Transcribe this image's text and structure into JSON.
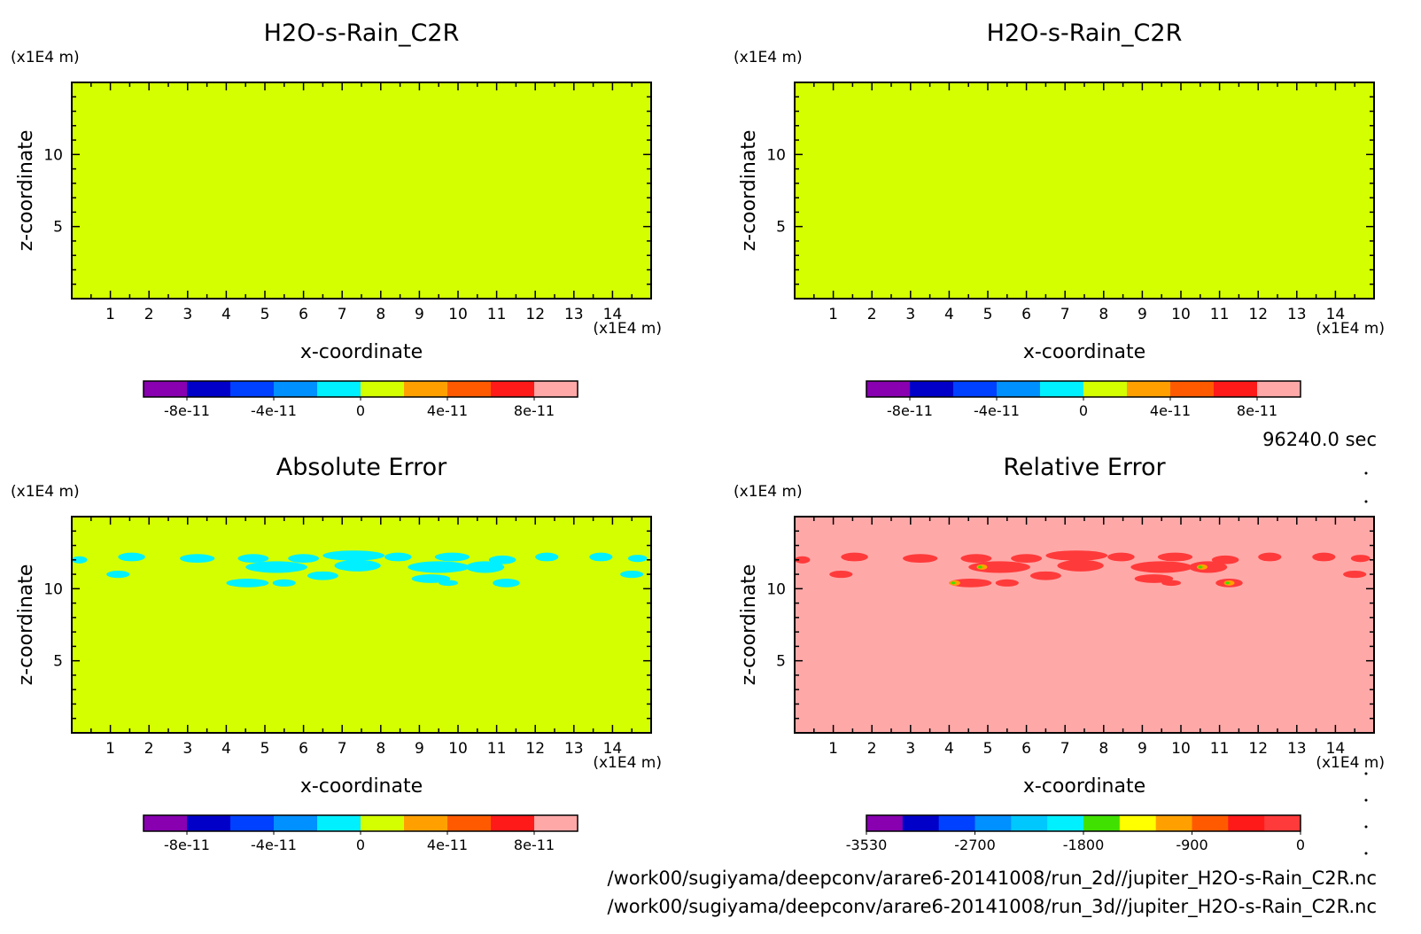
{
  "time_label": "96240.0 sec",
  "footer": {
    "path_2d": "/work00/sugiyama/deepconv/arare6-20141008/run_2d//jupiter_H2O-s-Rain_C2R.nc",
    "path_3d": "/work00/sugiyama/deepconv/arare6-20141008/run_3d//jupiter_H2O-s-Rain_C2R.nc"
  },
  "colors": {
    "field_zero": "#d4ff00",
    "cyan": "#00f0ff",
    "relative_bg": "#ffa8a8",
    "relative_red": "#ff3a3a",
    "frame": "#000000"
  },
  "chart_data": [
    {
      "type": "heatmap",
      "title": "H2O-s-Rain_C2R",
      "xlabel": "x-coordinate",
      "ylabel": "z-coordinate",
      "x_unit": "(x1E4 m)",
      "y_unit": "(x1E4 m)",
      "xlim": [
        0,
        15
      ],
      "ylim": [
        0,
        15
      ],
      "xticks": [
        1,
        2,
        3,
        4,
        5,
        6,
        7,
        8,
        9,
        10,
        11,
        12,
        13,
        14
      ],
      "yticks": [
        5,
        10
      ],
      "field": "uniform 0",
      "colorbar": {
        "colors": [
          "#8800b0",
          "#0000c8",
          "#0040ff",
          "#0090ff",
          "#00f0ff",
          "#d4ff00",
          "#ffa000",
          "#ff5a00",
          "#ff1a1a",
          "#ffa8a8"
        ],
        "tick_labels": [
          "-8e-11",
          "-4e-11",
          "0",
          "4e-11",
          "8e-11"
        ]
      }
    },
    {
      "type": "heatmap",
      "title": "H2O-s-Rain_C2R",
      "xlabel": "x-coordinate",
      "ylabel": "z-coordinate",
      "x_unit": "(x1E4 m)",
      "y_unit": "(x1E4 m)",
      "xlim": [
        0,
        15
      ],
      "ylim": [
        0,
        15
      ],
      "xticks": [
        1,
        2,
        3,
        4,
        5,
        6,
        7,
        8,
        9,
        10,
        11,
        12,
        13,
        14
      ],
      "yticks": [
        5,
        10
      ],
      "field": "uniform 0",
      "colorbar": {
        "colors": [
          "#8800b0",
          "#0000c8",
          "#0040ff",
          "#0090ff",
          "#00f0ff",
          "#d4ff00",
          "#ffa000",
          "#ff5a00",
          "#ff1a1a",
          "#ffa8a8"
        ],
        "tick_labels": [
          "-8e-11",
          "-4e-11",
          "0",
          "4e-11",
          "8e-11"
        ]
      }
    },
    {
      "type": "heatmap",
      "title": "Absolute Error",
      "xlabel": "x-coordinate",
      "ylabel": "z-coordinate",
      "x_unit": "(x1E4 m)",
      "y_unit": "(x1E4 m)",
      "xlim": [
        0,
        15
      ],
      "ylim": [
        0,
        15
      ],
      "xticks": [
        1,
        2,
        3,
        4,
        5,
        6,
        7,
        8,
        9,
        10,
        11,
        12,
        13,
        14
      ],
      "yticks": [
        5,
        10
      ],
      "field": "background 0, small negative patches between z=10 and z=12.5",
      "colorbar": {
        "colors": [
          "#8800b0",
          "#0000c8",
          "#0040ff",
          "#0090ff",
          "#00f0ff",
          "#d4ff00",
          "#ffa000",
          "#ff5a00",
          "#ff1a1a",
          "#ffa8a8"
        ],
        "tick_labels": [
          "-8e-11",
          "-4e-11",
          "0",
          "4e-11",
          "8e-11"
        ]
      }
    },
    {
      "type": "heatmap",
      "title": "Relative Error",
      "xlabel": "x-coordinate",
      "ylabel": "z-coordinate",
      "x_unit": "(x1E4 m)",
      "y_unit": "(x1E4 m)",
      "xlim": [
        0,
        15
      ],
      "ylim": [
        0,
        15
      ],
      "xticks": [
        1,
        2,
        3,
        4,
        5,
        6,
        7,
        8,
        9,
        10,
        11,
        12,
        13,
        14
      ],
      "yticks": [
        5,
        10
      ],
      "field": "background 0, negative patches between z=10 and z=12.5",
      "colorbar": {
        "colors": [
          "#8800b0",
          "#0000c8",
          "#0040ff",
          "#0090ff",
          "#00c8ff",
          "#00f0ff",
          "#40e000",
          "#ffff00",
          "#ffa000",
          "#ff5a00",
          "#ff1a1a",
          "#ff3a3a"
        ],
        "tick_labels": [
          "-3530",
          "-2700",
          "-1800",
          "-900",
          "0"
        ]
      }
    }
  ]
}
